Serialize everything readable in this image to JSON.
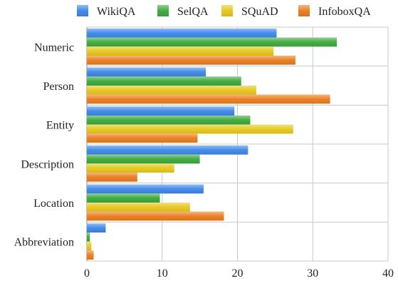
{
  "chart_data": {
    "type": "bar",
    "orientation": "horizontal",
    "categories": [
      "Numeric",
      "Person",
      "Entity",
      "Description",
      "Location",
      "Abbreviation"
    ],
    "series": [
      {
        "name": "WikiQA",
        "color": "#3a86e8",
        "values": [
          25.2,
          15.8,
          19.6,
          21.4,
          15.5,
          2.5
        ]
      },
      {
        "name": "SelQA",
        "color": "#3aa83a",
        "values": [
          33.2,
          20.5,
          21.7,
          15.0,
          9.7,
          0.4
        ]
      },
      {
        "name": "SQuAD",
        "color": "#e6c619",
        "values": [
          24.8,
          22.5,
          27.4,
          11.6,
          13.7,
          0.6
        ]
      },
      {
        "name": "InfoboxQA",
        "color": "#ea7a1a",
        "values": [
          27.7,
          32.3,
          14.7,
          6.7,
          18.2,
          0.9
        ]
      }
    ],
    "xlim": [
      0,
      40
    ],
    "xticks": [
      "0",
      "10",
      "20",
      "30",
      "40"
    ],
    "grid": true,
    "legend_position": "top"
  }
}
